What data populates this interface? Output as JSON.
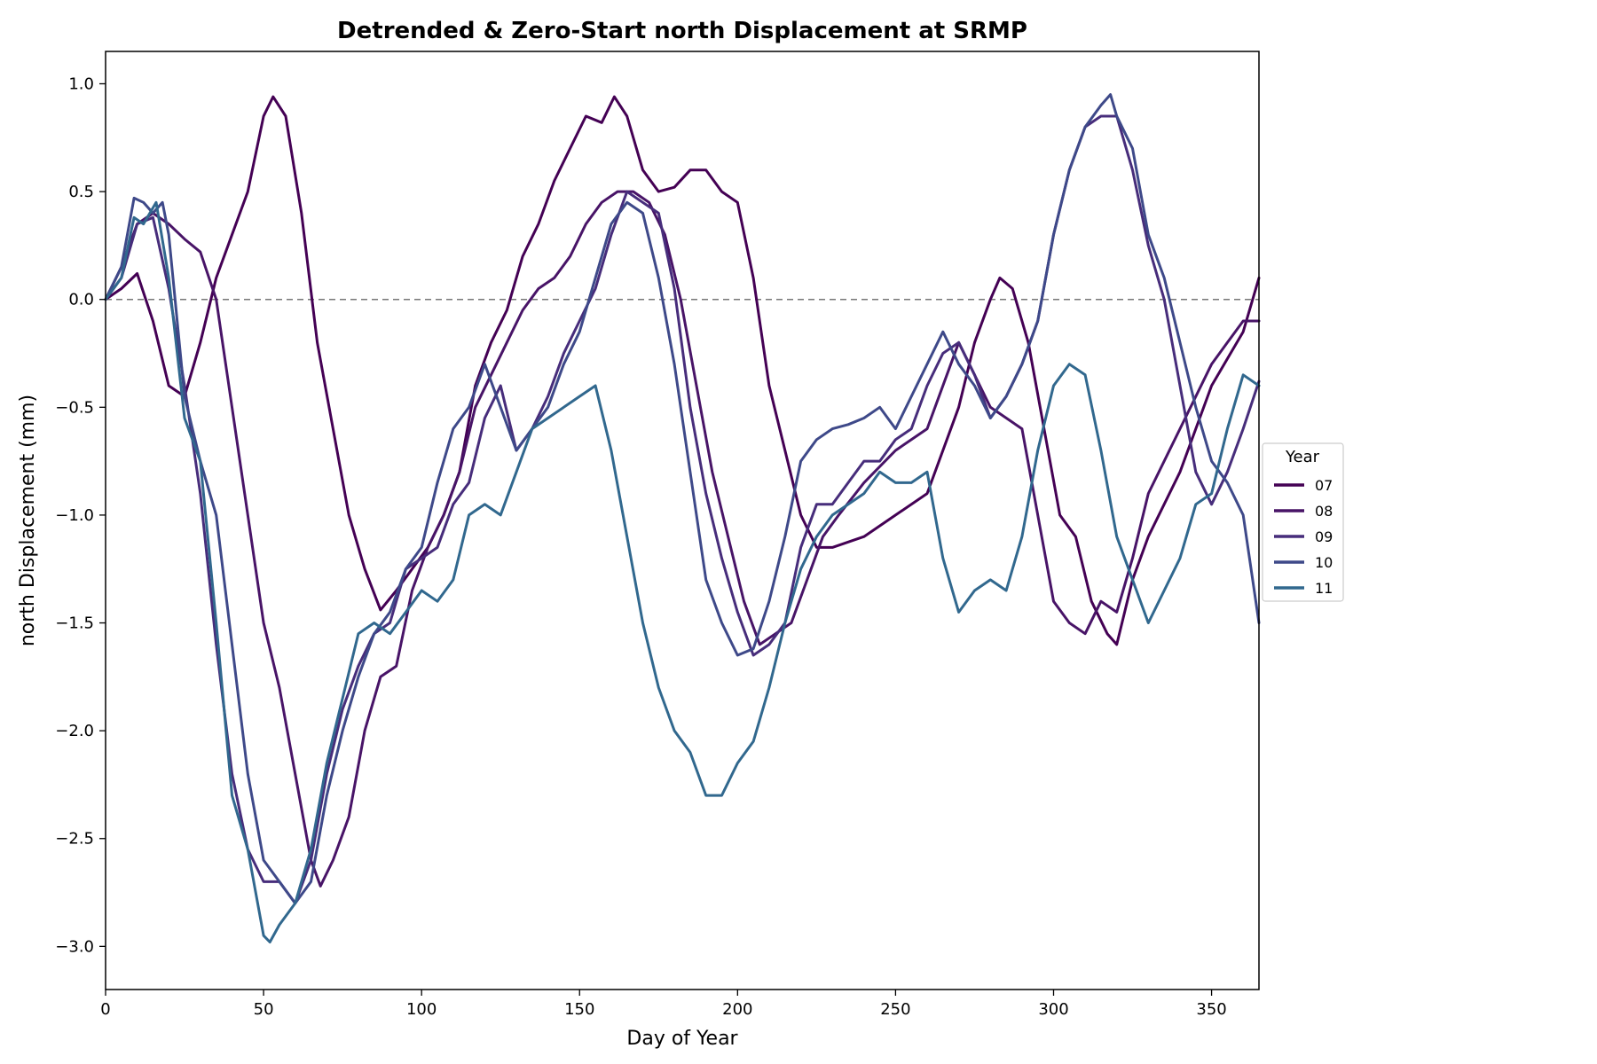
{
  "chart_data": {
    "type": "line",
    "title": "Detrended & Zero-Start north Displacement at SRMP",
    "xlabel": "Day of Year",
    "ylabel": "north Displacement (mm)",
    "xlim": [
      0,
      365
    ],
    "ylim": [
      -3.2,
      1.15
    ],
    "x_ticks": [
      0,
      50,
      100,
      150,
      200,
      250,
      300,
      350
    ],
    "y_ticks": [
      1.0,
      0.5,
      0.0,
      -0.5,
      -1.0,
      -1.5,
      -2.0,
      -2.5,
      -3.0
    ],
    "y_tick_labels": [
      "1.0",
      "0.5",
      "0.0",
      "−0.5",
      "−1.0",
      "−1.5",
      "−2.0",
      "−2.5",
      "−3.0"
    ],
    "reference_line": {
      "y": 0.0,
      "style": "dashed",
      "color": "#777777"
    },
    "grid": false,
    "legend": {
      "title": "Year",
      "placement": "outside-right"
    },
    "series": [
      {
        "name": "07",
        "color": "#440154",
        "x": [
          0,
          5,
          10,
          15,
          20,
          25,
          30,
          35,
          40,
          45,
          50,
          53,
          57,
          62,
          67,
          72,
          77,
          82,
          87,
          92,
          97,
          102,
          107,
          112,
          117,
          122,
          127,
          132,
          137,
          142,
          147,
          152,
          157,
          161,
          165,
          170,
          175,
          180,
          185,
          190,
          195,
          200,
          205,
          210,
          215,
          220,
          225,
          230,
          240,
          250,
          260,
          270,
          275,
          280,
          283,
          287,
          292,
          297,
          302,
          307,
          312,
          317,
          320,
          325,
          330,
          340,
          350,
          360,
          365
        ],
        "y": [
          0.0,
          0.05,
          0.12,
          -0.1,
          -0.4,
          -0.45,
          -0.2,
          0.1,
          0.3,
          0.5,
          0.85,
          0.94,
          0.85,
          0.4,
          -0.2,
          -0.6,
          -1.0,
          -1.25,
          -1.44,
          -1.35,
          -1.25,
          -1.15,
          -1.0,
          -0.8,
          -0.4,
          -0.2,
          -0.05,
          0.2,
          0.35,
          0.55,
          0.7,
          0.85,
          0.82,
          0.94,
          0.85,
          0.6,
          0.5,
          0.52,
          0.6,
          0.6,
          0.5,
          0.45,
          0.1,
          -0.4,
          -0.7,
          -1.0,
          -1.15,
          -1.15,
          -1.1,
          -1.0,
          -0.9,
          -0.5,
          -0.2,
          0.0,
          0.1,
          0.05,
          -0.2,
          -0.6,
          -1.0,
          -1.1,
          -1.4,
          -1.55,
          -1.6,
          -1.3,
          -1.1,
          -0.8,
          -0.4,
          -0.15,
          0.1
        ]
      },
      {
        "name": "08",
        "color": "#481467",
        "x": [
          0,
          5,
          10,
          15,
          20,
          25,
          30,
          35,
          40,
          45,
          50,
          55,
          60,
          65,
          68,
          72,
          77,
          82,
          87,
          92,
          97,
          102,
          107,
          112,
          117,
          122,
          127,
          132,
          137,
          142,
          147,
          152,
          157,
          162,
          167,
          172,
          177,
          182,
          187,
          192,
          197,
          202,
          207,
          212,
          217,
          222,
          227,
          232,
          240,
          250,
          260,
          270,
          280,
          290,
          300,
          305,
          310,
          315,
          320,
          325,
          330,
          340,
          350,
          355,
          360,
          365
        ],
        "y": [
          0.0,
          0.15,
          0.35,
          0.4,
          0.35,
          0.28,
          0.22,
          0.0,
          -0.5,
          -1.0,
          -1.5,
          -1.8,
          -2.2,
          -2.6,
          -2.72,
          -2.6,
          -2.4,
          -2.0,
          -1.75,
          -1.7,
          -1.35,
          -1.15,
          -1.0,
          -0.8,
          -0.5,
          -0.35,
          -0.2,
          -0.05,
          0.05,
          0.1,
          0.2,
          0.35,
          0.45,
          0.5,
          0.5,
          0.45,
          0.3,
          0.0,
          -0.4,
          -0.8,
          -1.1,
          -1.4,
          -1.6,
          -1.55,
          -1.5,
          -1.3,
          -1.1,
          -1.0,
          -0.85,
          -0.7,
          -0.6,
          -0.2,
          -0.5,
          -0.6,
          -1.4,
          -1.5,
          -1.55,
          -1.4,
          -1.45,
          -1.2,
          -0.9,
          -0.6,
          -0.3,
          -0.2,
          -0.1,
          -0.1
        ]
      },
      {
        "name": "09",
        "color": "#472d7b",
        "x": [
          0,
          5,
          10,
          15,
          20,
          25,
          30,
          35,
          40,
          45,
          50,
          55,
          60,
          65,
          70,
          75,
          80,
          85,
          90,
          95,
          100,
          105,
          110,
          115,
          120,
          125,
          130,
          135,
          140,
          145,
          150,
          155,
          160,
          165,
          170,
          175,
          180,
          185,
          190,
          195,
          200,
          205,
          210,
          215,
          220,
          225,
          230,
          235,
          240,
          245,
          250,
          255,
          260,
          265,
          270,
          275,
          280,
          285,
          290,
          295,
          300,
          305,
          310,
          315,
          320,
          325,
          330,
          335,
          340,
          345,
          350,
          355,
          360,
          365
        ],
        "y": [
          0.0,
          0.1,
          0.35,
          0.38,
          0.05,
          -0.4,
          -0.9,
          -1.6,
          -2.2,
          -2.55,
          -2.7,
          -2.7,
          -2.8,
          -2.6,
          -2.2,
          -1.9,
          -1.7,
          -1.55,
          -1.5,
          -1.25,
          -1.2,
          -1.15,
          -0.95,
          -0.85,
          -0.55,
          -0.4,
          -0.7,
          -0.6,
          -0.45,
          -0.25,
          -0.1,
          0.05,
          0.3,
          0.5,
          0.45,
          0.4,
          0.05,
          -0.5,
          -0.9,
          -1.2,
          -1.45,
          -1.65,
          -1.6,
          -1.5,
          -1.15,
          -0.95,
          -0.95,
          -0.85,
          -0.75,
          -0.75,
          -0.65,
          -0.6,
          -0.4,
          -0.25,
          -0.2,
          -0.35,
          -0.55,
          -0.45,
          -0.3,
          -0.1,
          0.3,
          0.6,
          0.8,
          0.85,
          0.85,
          0.6,
          0.25,
          0.0,
          -0.4,
          -0.8,
          -0.95,
          -0.8,
          -0.6,
          -0.38
        ]
      },
      {
        "name": "10",
        "color": "#3e4989",
        "x": [
          0,
          5,
          9,
          12,
          15,
          18,
          20,
          25,
          30,
          35,
          40,
          45,
          50,
          55,
          60,
          65,
          70,
          75,
          80,
          85,
          90,
          95,
          100,
          105,
          110,
          115,
          120,
          125,
          130,
          135,
          140,
          145,
          150,
          155,
          160,
          165,
          170,
          175,
          180,
          185,
          190,
          195,
          200,
          205,
          210,
          215,
          220,
          225,
          230,
          235,
          240,
          245,
          250,
          255,
          260,
          265,
          270,
          275,
          280,
          285,
          290,
          295,
          300,
          305,
          310,
          315,
          318,
          320,
          325,
          330,
          335,
          340,
          345,
          350,
          355,
          360,
          365
        ],
        "y": [
          0.0,
          0.15,
          0.47,
          0.45,
          0.4,
          0.45,
          0.3,
          -0.45,
          -0.75,
          -1.0,
          -1.6,
          -2.2,
          -2.6,
          -2.7,
          -2.8,
          -2.7,
          -2.3,
          -2.0,
          -1.75,
          -1.55,
          -1.45,
          -1.25,
          -1.15,
          -0.85,
          -0.6,
          -0.5,
          -0.3,
          -0.5,
          -0.7,
          -0.6,
          -0.5,
          -0.3,
          -0.15,
          0.1,
          0.35,
          0.45,
          0.4,
          0.1,
          -0.3,
          -0.8,
          -1.3,
          -1.5,
          -1.65,
          -1.62,
          -1.4,
          -1.1,
          -0.75,
          -0.65,
          -0.6,
          -0.58,
          -0.55,
          -0.5,
          -0.6,
          -0.45,
          -0.3,
          -0.15,
          -0.3,
          -0.4,
          -0.55,
          -0.45,
          -0.3,
          -0.1,
          0.3,
          0.6,
          0.8,
          0.9,
          0.95,
          0.85,
          0.7,
          0.3,
          0.1,
          -0.2,
          -0.5,
          -0.75,
          -0.85,
          -1.0,
          -1.5
        ]
      },
      {
        "name": "11",
        "color": "#31688e",
        "x": [
          0,
          5,
          9,
          12,
          16,
          20,
          25,
          30,
          35,
          40,
          45,
          50,
          52,
          55,
          60,
          65,
          70,
          75,
          80,
          85,
          90,
          95,
          100,
          105,
          110,
          115,
          120,
          125,
          130,
          135,
          140,
          145,
          150,
          155,
          160,
          165,
          170,
          175,
          180,
          185,
          190,
          195,
          200,
          205,
          210,
          215,
          220,
          225,
          230,
          235,
          240,
          245,
          250,
          255,
          260,
          265,
          270,
          275,
          280,
          285,
          290,
          295,
          300,
          305,
          310,
          315,
          320,
          325,
          330,
          335,
          340,
          345,
          350,
          355,
          360,
          365
        ],
        "y": [
          0.0,
          0.1,
          0.38,
          0.35,
          0.45,
          0.1,
          -0.55,
          -0.75,
          -1.5,
          -2.3,
          -2.55,
          -2.95,
          -2.98,
          -2.9,
          -2.8,
          -2.55,
          -2.15,
          -1.85,
          -1.55,
          -1.5,
          -1.55,
          -1.45,
          -1.35,
          -1.4,
          -1.3,
          -1.0,
          -0.95,
          -1.0,
          -0.8,
          -0.6,
          -0.55,
          -0.5,
          -0.45,
          -0.4,
          -0.7,
          -1.1,
          -1.5,
          -1.8,
          -2.0,
          -2.1,
          -2.3,
          -2.3,
          -2.15,
          -2.05,
          -1.8,
          -1.5,
          -1.25,
          -1.1,
          -1.0,
          -0.95,
          -0.9,
          -0.8,
          -0.85,
          -0.85,
          -0.8,
          -1.2,
          -1.45,
          -1.35,
          -1.3,
          -1.35,
          -1.1,
          -0.7,
          -0.4,
          -0.3,
          -0.35,
          -0.7,
          -1.1,
          -1.3,
          -1.5,
          -1.35,
          -1.2,
          -0.95,
          -0.9,
          -0.6,
          -0.35,
          -0.4
        ]
      }
    ]
  }
}
